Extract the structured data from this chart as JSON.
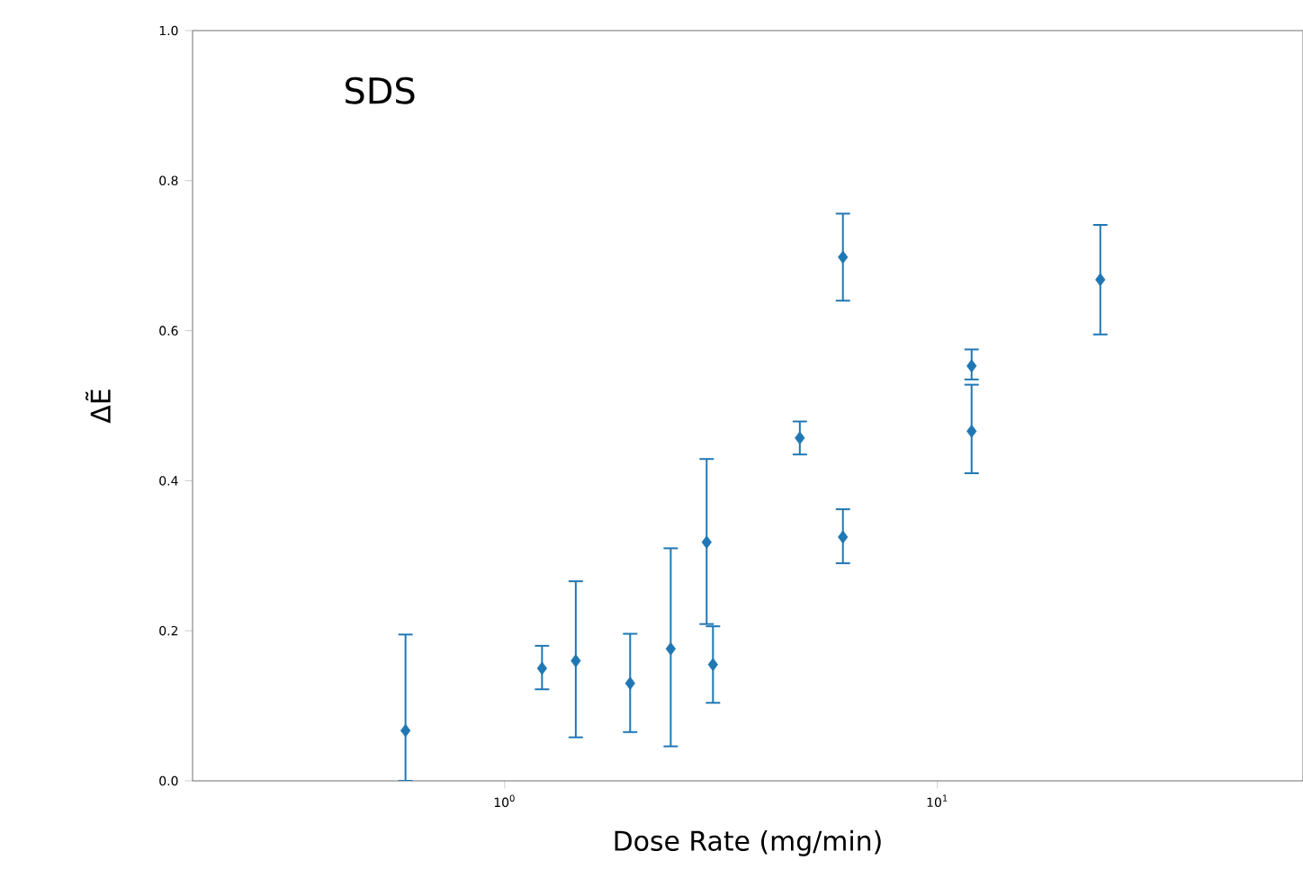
{
  "chart_data": {
    "type": "scatter",
    "annotations": [
      "SDS"
    ],
    "xlabel": "Dose Rate (mg/min)",
    "ylabel": "ΔẼ",
    "log": "x",
    "marker": "diamond",
    "x": [
      0.59,
      1.22,
      1.46,
      1.95,
      2.42,
      2.93,
      3.03,
      4.81,
      6.05,
      12.0,
      12.0,
      6.05,
      23.8
    ],
    "series": [
      {
        "color": "#1f77b4",
        "values": [
          0.067,
          0.15,
          0.16,
          0.13,
          0.176,
          0.318,
          0.155,
          0.457,
          0.325,
          0.466,
          0.553,
          0.698,
          0.668
        ],
        "errors": [
          [
            0.0,
            0.195
          ],
          [
            0.122,
            0.18
          ],
          [
            0.058,
            0.266
          ],
          [
            0.065,
            0.196
          ],
          [
            0.046,
            0.31
          ],
          [
            0.209,
            0.429
          ],
          [
            0.104,
            0.206
          ],
          [
            0.435,
            0.479
          ],
          [
            0.29,
            0.362
          ],
          [
            0.41,
            0.528
          ],
          [
            0.535,
            0.575
          ],
          [
            0.64,
            0.756
          ],
          [
            0.595,
            0.741
          ]
        ]
      }
    ],
    "xlim": [
      0.19,
      70
    ],
    "ylim": [
      0,
      1.0
    ],
    "xticks": [
      {
        "value": 1,
        "label": "10$^{0}$"
      },
      {
        "value": 10,
        "label": "10$^{1}$"
      }
    ],
    "yticks": [
      {
        "value": 0,
        "label": "0.0"
      },
      {
        "value": 0.2,
        "label": "0.2"
      },
      {
        "value": 0.4,
        "label": "0.4"
      },
      {
        "value": 0.6,
        "label": "0.6"
      },
      {
        "value": 0.8,
        "label": "0.8"
      },
      {
        "value": 1.0,
        "label": "1.0"
      }
    ]
  }
}
